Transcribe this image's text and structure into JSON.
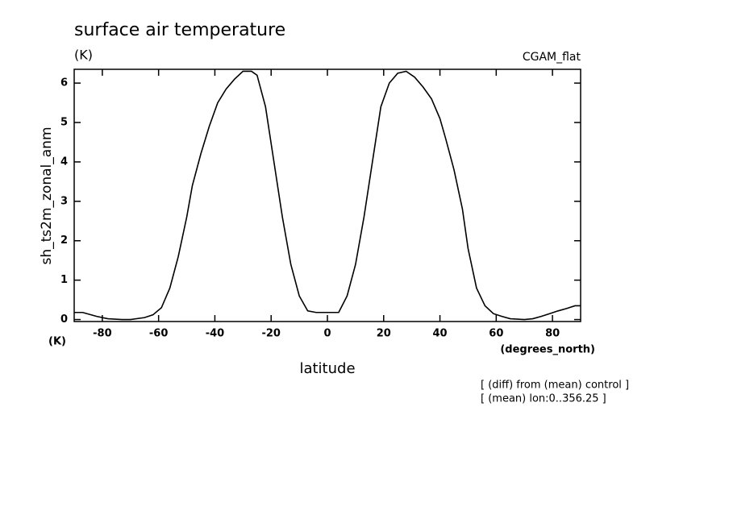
{
  "chart_data": {
    "type": "line",
    "title": "surface air temperature",
    "units": "(K)",
    "dataset": "CGAM_flat",
    "y_label": "sh_ts2m_zonal_anm",
    "y_units": "(K)",
    "x_label": "latitude",
    "x_units": "(degrees_north)",
    "annotations": [
      "[ (diff) from (mean) control ]",
      "[ (mean) lon:0..356.25 ]"
    ],
    "x": [
      -90,
      -87,
      -82,
      -78,
      -73,
      -70,
      -65,
      -62,
      -59,
      -56,
      -53,
      -50,
      -48,
      -45,
      -42,
      -39,
      -36,
      -33,
      -30,
      -27,
      -25,
      -22,
      -19,
      -16,
      -13,
      -10,
      -7,
      -4,
      0,
      4,
      7,
      10,
      13,
      16,
      19,
      22,
      25,
      28,
      31,
      34,
      37,
      40,
      42,
      45,
      48,
      50,
      53,
      56,
      59,
      62,
      65,
      70,
      73,
      76,
      79,
      82,
      85,
      88,
      90
    ],
    "series": [
      {
        "name": "sh_ts2m_zonal_anm",
        "color": "#000000",
        "values": [
          0.18,
          0.18,
          0.08,
          0.02,
          0,
          0,
          0.05,
          0.12,
          0.3,
          0.8,
          1.6,
          2.6,
          3.4,
          4.2,
          4.9,
          5.5,
          5.85,
          6.1,
          6.3,
          6.3,
          6.2,
          5.4,
          4.0,
          2.6,
          1.4,
          0.6,
          0.22,
          0.18,
          0.18,
          0.18,
          0.6,
          1.4,
          2.6,
          4.0,
          5.4,
          6.0,
          6.25,
          6.3,
          6.15,
          5.9,
          5.6,
          5.1,
          4.6,
          3.8,
          2.8,
          1.8,
          0.8,
          0.35,
          0.15,
          0.08,
          0.02,
          0,
          0.02,
          0.08,
          0.15,
          0.22,
          0.28,
          0.35,
          0.35
        ]
      }
    ],
    "xlim": [
      -90,
      90
    ],
    "ylim": [
      -0.05,
      6.35
    ],
    "xticks": [
      -80,
      -60,
      -40,
      -20,
      0,
      20,
      40,
      60,
      80
    ],
    "yticks": [
      0,
      1,
      2,
      3,
      4,
      5,
      6
    ]
  }
}
